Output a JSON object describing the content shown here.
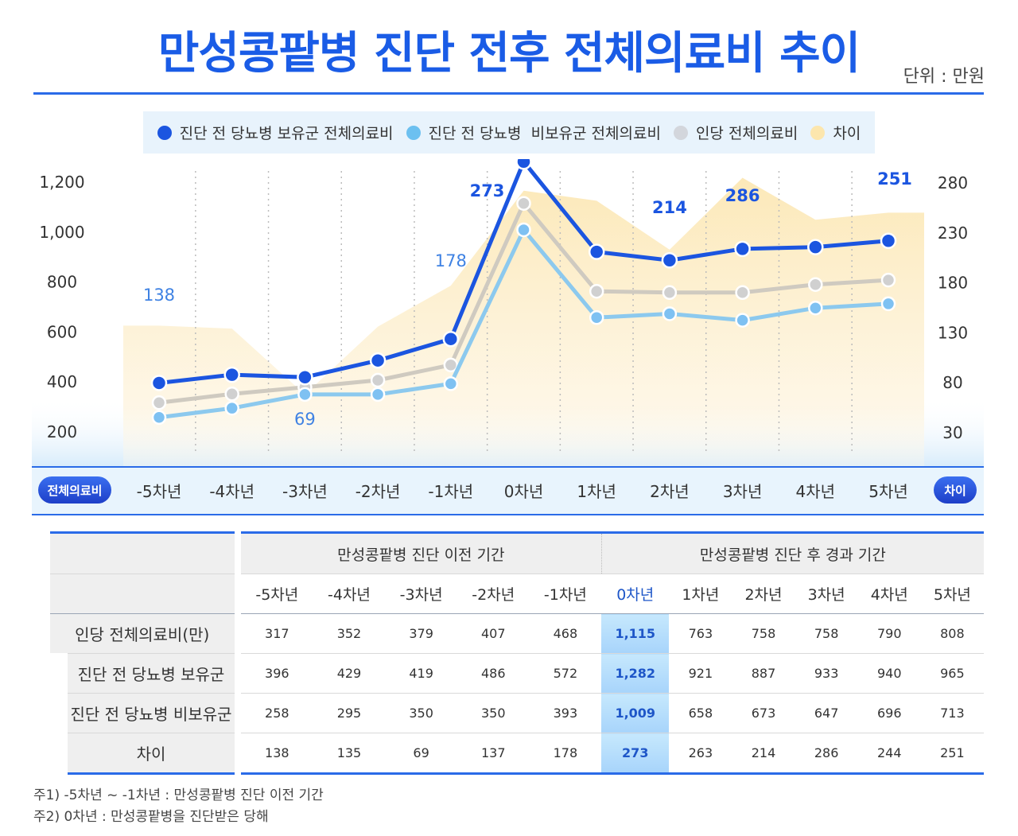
{
  "title": "만성콩팥병 진단 전후 전체의료비 추이",
  "unit": "단위 : 만원",
  "colors": {
    "accent": "#1a5ce6",
    "series_main": "#1b55e0",
    "series_nonholder": "#7fc2ef",
    "series_avg": "#cbcbcb",
    "difference": "#fbe6b5"
  },
  "legend": [
    {
      "label": "진단 전 당뇨병 보유군 전체의료비",
      "color": "#1b55e0"
    },
    {
      "label": "진단 전 당뇨병  비보유군 전체의료비",
      "color": "#6cc0f0"
    },
    {
      "label": "인당 전체의료비",
      "color": "#d3d6dc"
    },
    {
      "label": "차이",
      "color": "#fce6ad"
    }
  ],
  "axis_pills": {
    "left": "전체의료비",
    "right": "차이"
  },
  "chart_data": {
    "type": "line",
    "categories": [
      "-5차년",
      "-4차년",
      "-3차년",
      "-2차년",
      "-1차년",
      "0차년",
      "1차년",
      "2차년",
      "3차년",
      "4차년",
      "5차년"
    ],
    "series": [
      {
        "name": "진단 전 당뇨병 보유군 전체의료비",
        "axis": "left",
        "values": [
          396,
          429,
          419,
          486,
          572,
          1282,
          921,
          887,
          933,
          940,
          965
        ]
      },
      {
        "name": "진단 전 당뇨병  비보유군 전체의료비",
        "axis": "left",
        "values": [
          258,
          295,
          350,
          350,
          393,
          1009,
          658,
          673,
          647,
          696,
          713
        ]
      },
      {
        "name": "인당 전체의료비",
        "axis": "left",
        "values": [
          317,
          352,
          379,
          407,
          468,
          1115,
          763,
          758,
          758,
          790,
          808
        ]
      },
      {
        "name": "차이",
        "axis": "right",
        "type": "area",
        "values": [
          138,
          135,
          69,
          137,
          178,
          273,
          263,
          214,
          286,
          244,
          251
        ]
      }
    ],
    "y_left_ticks": [
      "1,200",
      "1,000",
      "800",
      "600",
      "400",
      "200"
    ],
    "y_right_ticks": [
      "280",
      "230",
      "180",
      "130",
      "80",
      "30"
    ],
    "annotations": [
      {
        "index": 0,
        "text": "138"
      },
      {
        "index": 2,
        "text": "69"
      },
      {
        "index": 4,
        "text": "178"
      },
      {
        "index": 5,
        "text": "273"
      },
      {
        "index": 7,
        "text": "214"
      },
      {
        "index": 8,
        "text": "286"
      },
      {
        "index": 10,
        "text": "251"
      }
    ],
    "legend_position": "top"
  },
  "table": {
    "group_before": "만성콩팥병 진단 이전 기간",
    "group_after": "만성콩팥병 진단 후 경과 기간",
    "columns": [
      "-5차년",
      "-4차년",
      "-3차년",
      "-2차년",
      "-1차년",
      "0차년",
      "1차년",
      "2차년",
      "3차년",
      "4차년",
      "5차년"
    ],
    "rows": [
      {
        "label": "인당 전체의료비(만)",
        "values": [
          "317",
          "352",
          "379",
          "407",
          "468",
          "1,115",
          "763",
          "758",
          "758",
          "790",
          "808"
        ]
      },
      {
        "label": "진단 전 당뇨병 보유군",
        "values": [
          "396",
          "429",
          "419",
          "486",
          "572",
          "1,282",
          "921",
          "887",
          "933",
          "940",
          "965"
        ]
      },
      {
        "label": "진단 전 당뇨병 비보유군",
        "values": [
          "258",
          "295",
          "350",
          "350",
          "393",
          "1,009",
          "658",
          "673",
          "647",
          "696",
          "713"
        ]
      },
      {
        "label": "차이",
        "values": [
          "138",
          "135",
          "69",
          "137",
          "178",
          "273",
          "263",
          "214",
          "286",
          "244",
          "251"
        ]
      }
    ]
  },
  "footnotes": [
    "주1) -5차년 ~ -1차년 : 만성콩팥병 진단 이전 기간",
    "주2) 0차년 : 만성콩팥병을 진단받은 당해"
  ]
}
